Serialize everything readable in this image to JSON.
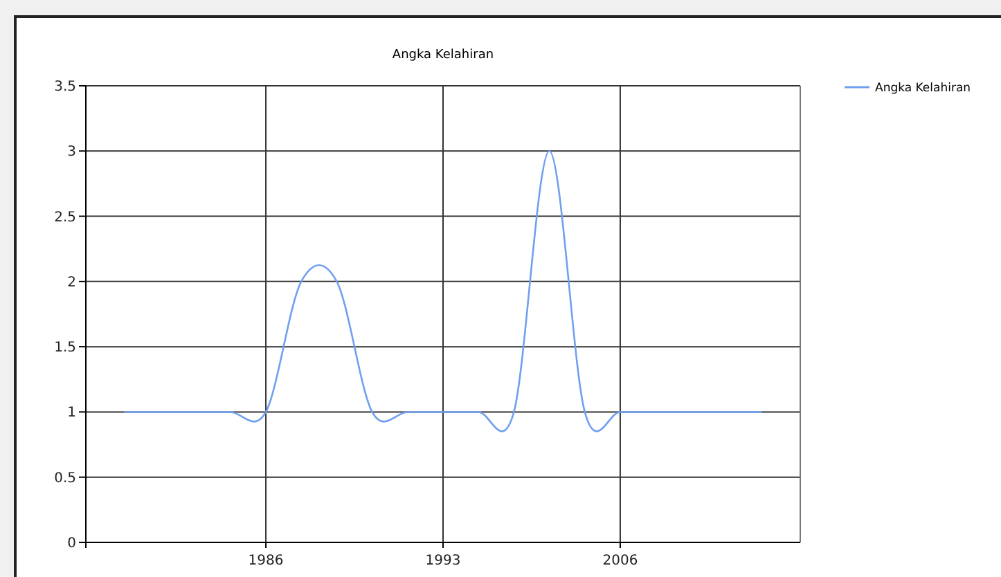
{
  "chart_data": {
    "type": "line",
    "title": "Angka Kelahiran",
    "categories": [
      null,
      null,
      null,
      null,
      "1986",
      null,
      null,
      null,
      null,
      "1993",
      null,
      null,
      null,
      null,
      "2006",
      null,
      null,
      null,
      null
    ],
    "series": [
      {
        "name": "Angka Kelahiran",
        "color": "#6fa0f0",
        "values": [
          1,
          1,
          1,
          1,
          1,
          2,
          2,
          1,
          1,
          1,
          1,
          1,
          3,
          1,
          1,
          1,
          1,
          1,
          1
        ]
      }
    ],
    "ylim": [
      0,
      3.5
    ],
    "yticks": [
      0,
      0.5,
      1,
      1.5,
      2,
      2.5,
      3,
      3.5
    ],
    "grid": true,
    "legend": "top right",
    "marker": "none"
  }
}
